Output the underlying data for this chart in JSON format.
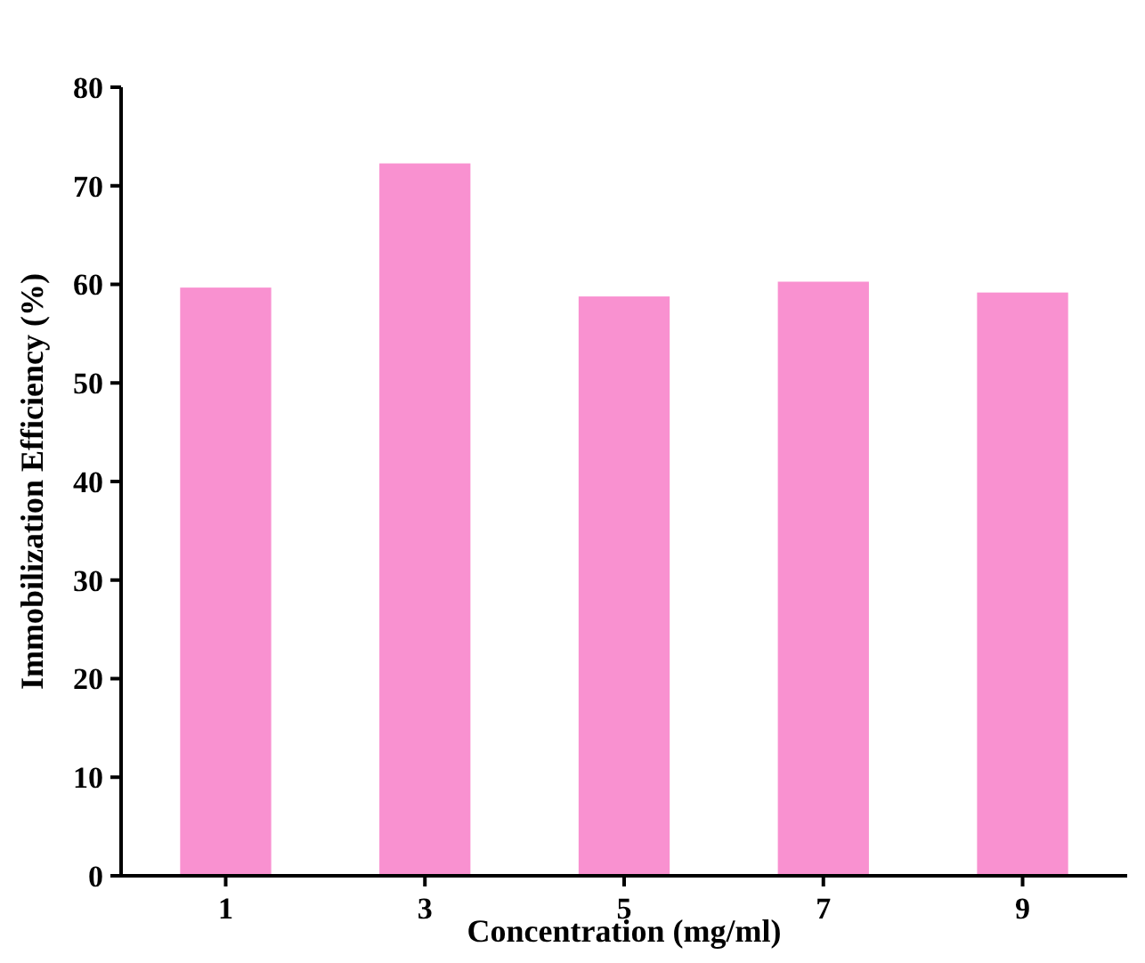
{
  "chart_data": {
    "type": "bar",
    "xlabel": "Concentration (mg/ml)",
    "ylabel": "Immobilization Efficiency (%)",
    "categories": [
      "1",
      "3",
      "5",
      "7",
      "9"
    ],
    "values": [
      59.6,
      72.2,
      58.7,
      60.2,
      59.1
    ],
    "color": "#f991d0",
    "ylim": [
      0,
      80
    ],
    "yticks": [
      0,
      10,
      20,
      30,
      40,
      50,
      60,
      70,
      80
    ],
    "grid": false
  }
}
